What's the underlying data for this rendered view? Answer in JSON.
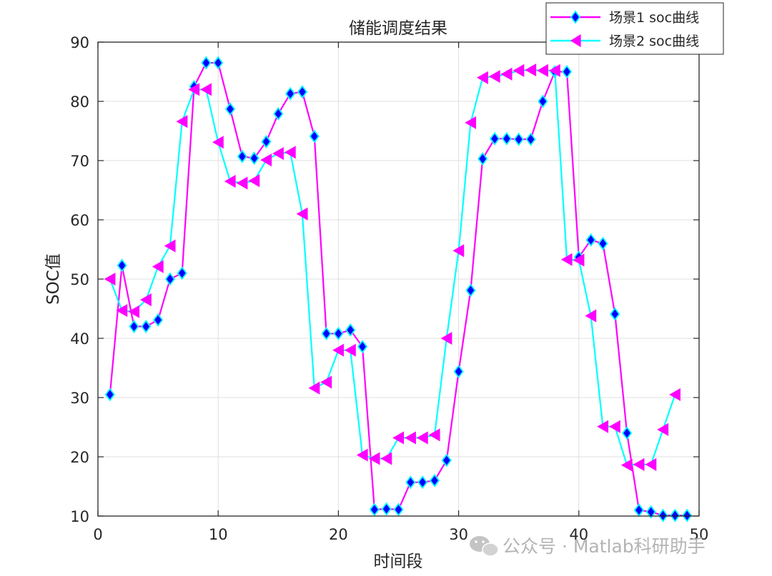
{
  "chart_data": {
    "type": "line",
    "title": "储能调度结果",
    "xlabel": "时间段",
    "ylabel": "SOC值",
    "xlim": [
      0,
      50
    ],
    "ylim": [
      10,
      90
    ],
    "xticks": [
      0,
      10,
      20,
      30,
      40,
      50
    ],
    "yticks": [
      10,
      20,
      30,
      40,
      50,
      60,
      70,
      80,
      90
    ],
    "grid": true,
    "legend_position": "top-right",
    "series": [
      {
        "name": "场景1 soc曲线",
        "line_color": "#ff00ff",
        "marker": "diamond",
        "marker_fill": "#0000ff",
        "marker_edge": "#00ffff",
        "x": [
          1,
          2,
          3,
          4,
          5,
          6,
          7,
          8,
          9,
          10,
          11,
          12,
          13,
          14,
          15,
          16,
          17,
          18,
          19,
          20,
          21,
          22,
          23,
          24,
          25,
          26,
          27,
          28,
          29,
          30,
          31,
          32,
          33,
          34,
          35,
          36,
          37,
          38,
          39,
          40,
          41,
          42,
          43,
          44,
          45,
          46,
          47,
          48,
          49
        ],
        "values": [
          30.5,
          52.3,
          42.0,
          42.0,
          43.1,
          50.0,
          51.0,
          82.5,
          86.5,
          86.5,
          78.7,
          70.7,
          70.4,
          73.2,
          77.9,
          81.3,
          81.6,
          74.1,
          40.8,
          40.8,
          41.4,
          38.6,
          11.1,
          11.2,
          11.1,
          15.7,
          15.7,
          16.0,
          19.4,
          34.4,
          48.1,
          70.3,
          73.7,
          73.7,
          73.6,
          73.6,
          80.0,
          85.0,
          85.0,
          53.7,
          56.6,
          56.0,
          44.1,
          24.0,
          11.0,
          10.7,
          10.1,
          10.1,
          10.1
        ]
      },
      {
        "name": "场景2 soc曲线",
        "line_color": "#00ffff",
        "marker": "triangle-left",
        "marker_fill": "#ff00ff",
        "x": [
          1,
          2,
          3,
          4,
          5,
          6,
          7,
          8,
          9,
          10,
          11,
          12,
          13,
          14,
          15,
          16,
          17,
          18,
          19,
          20,
          21,
          22,
          23,
          24,
          25,
          26,
          27,
          28,
          29,
          30,
          31,
          32,
          33,
          34,
          35,
          36,
          37,
          38,
          39,
          40,
          41,
          42,
          43,
          44,
          45,
          46,
          47,
          48,
          49
        ],
        "values": [
          50.0,
          44.7,
          44.5,
          46.5,
          52.1,
          55.6,
          76.6,
          82.0,
          82.0,
          73.1,
          66.5,
          66.2,
          66.6,
          70.1,
          71.2,
          71.4,
          61.0,
          31.6,
          32.6,
          38.0,
          38.0,
          20.3,
          19.7,
          19.7,
          23.2,
          23.2,
          23.2,
          23.7,
          40.0,
          54.8,
          76.4,
          84.0,
          84.2,
          84.6,
          85.2,
          85.3,
          85.2,
          85.2,
          53.3,
          53.2,
          43.8,
          25.1,
          25.1,
          18.6,
          18.7,
          18.7,
          24.6,
          30.5,
          null
        ]
      }
    ]
  },
  "watermark": {
    "icon": "wechat-icon",
    "text": "公众号 · Matlab科研助手"
  }
}
